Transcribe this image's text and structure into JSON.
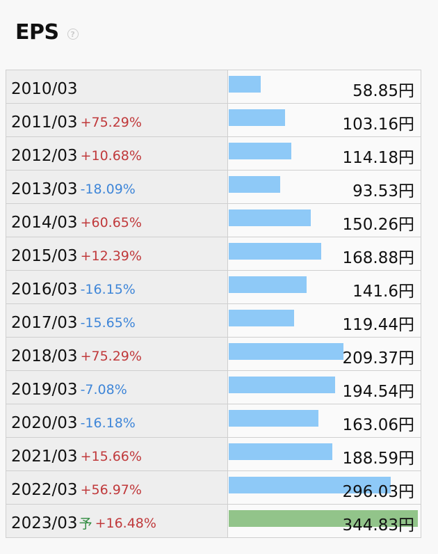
{
  "header": {
    "title": "EPS",
    "help_icon": "?"
  },
  "chart_data": {
    "type": "bar",
    "orientation": "horizontal",
    "title": "EPS",
    "unit": "円",
    "max_value": 350,
    "bar_color": "#8ec9f7",
    "forecast_bar_color": "#92c48a",
    "positive_change_color": "#c0393b",
    "negative_change_color": "#3f86d8",
    "rows": [
      {
        "year": "2010/03",
        "change": "",
        "value": 58.85,
        "value_label": "58.85円",
        "forecast": ""
      },
      {
        "year": "2011/03",
        "change": "+75.29%",
        "value": 103.16,
        "value_label": "103.16円",
        "forecast": ""
      },
      {
        "year": "2012/03",
        "change": "+10.68%",
        "value": 114.18,
        "value_label": "114.18円",
        "forecast": ""
      },
      {
        "year": "2013/03",
        "change": "-18.09%",
        "value": 93.53,
        "value_label": "93.53円",
        "forecast": ""
      },
      {
        "year": "2014/03",
        "change": "+60.65%",
        "value": 150.26,
        "value_label": "150.26円",
        "forecast": ""
      },
      {
        "year": "2015/03",
        "change": "+12.39%",
        "value": 168.88,
        "value_label": "168.88円",
        "forecast": ""
      },
      {
        "year": "2016/03",
        "change": "-16.15%",
        "value": 141.6,
        "value_label": "141.6円",
        "forecast": ""
      },
      {
        "year": "2017/03",
        "change": "-15.65%",
        "value": 119.44,
        "value_label": "119.44円",
        "forecast": ""
      },
      {
        "year": "2018/03",
        "change": "+75.29%",
        "value": 209.37,
        "value_label": "209.37円",
        "forecast": ""
      },
      {
        "year": "2019/03",
        "change": "-7.08%",
        "value": 194.54,
        "value_label": "194.54円",
        "forecast": ""
      },
      {
        "year": "2020/03",
        "change": "-16.18%",
        "value": 163.06,
        "value_label": "163.06円",
        "forecast": ""
      },
      {
        "year": "2021/03",
        "change": "+15.66%",
        "value": 188.59,
        "value_label": "188.59円",
        "forecast": ""
      },
      {
        "year": "2022/03",
        "change": "+56.97%",
        "value": 296.03,
        "value_label": "296.03円",
        "forecast": ""
      },
      {
        "year": "2023/03",
        "change": "+16.48%",
        "value": 344.83,
        "value_label": "344.83円",
        "forecast": "予"
      }
    ]
  }
}
